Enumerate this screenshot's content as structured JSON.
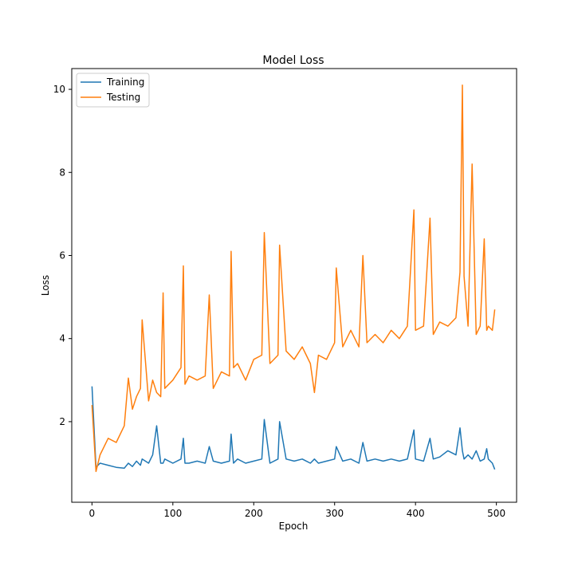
{
  "chart_data": {
    "type": "line",
    "title": "Model Loss",
    "xlabel": "Epoch",
    "ylabel": "Loss",
    "xlim": [
      -25,
      525
    ],
    "ylim": [
      0.06,
      10.5
    ],
    "xticks": [
      0,
      100,
      200,
      300,
      400,
      500
    ],
    "yticks": [
      2,
      4,
      6,
      8,
      10
    ],
    "grid": false,
    "legend_placement": "upper-left",
    "colors": {
      "training": "#1f77b4",
      "testing": "#ff7f0e"
    },
    "keypoint_x": [
      0,
      5,
      10,
      20,
      30,
      40,
      45,
      50,
      55,
      60,
      62,
      70,
      75,
      80,
      85,
      88,
      90,
      100,
      110,
      113,
      115,
      120,
      130,
      140,
      145,
      150,
      160,
      170,
      172,
      175,
      180,
      190,
      200,
      210,
      213,
      220,
      230,
      232,
      240,
      250,
      260,
      270,
      275,
      280,
      290,
      300,
      302,
      310,
      320,
      330,
      335,
      340,
      350,
      360,
      370,
      380,
      390,
      398,
      400,
      410,
      418,
      422,
      430,
      440,
      450,
      455,
      458,
      460,
      465,
      470,
      475,
      480,
      485,
      488,
      490,
      495,
      498
    ],
    "series": [
      {
        "name": "Training",
        "values": [
          2.85,
          0.9,
          1.0,
          0.95,
          0.9,
          0.88,
          1.0,
          0.92,
          1.05,
          0.95,
          1.1,
          1.0,
          1.2,
          1.9,
          1.0,
          1.0,
          1.1,
          1.0,
          1.1,
          1.6,
          1.0,
          1.0,
          1.05,
          1.0,
          1.4,
          1.05,
          1.0,
          1.05,
          1.7,
          1.0,
          1.1,
          1.0,
          1.05,
          1.1,
          2.05,
          1.0,
          1.1,
          2.0,
          1.1,
          1.05,
          1.1,
          1.0,
          1.1,
          1.0,
          1.05,
          1.1,
          1.4,
          1.05,
          1.1,
          1.0,
          1.5,
          1.05,
          1.1,
          1.05,
          1.1,
          1.05,
          1.1,
          1.8,
          1.1,
          1.05,
          1.6,
          1.1,
          1.15,
          1.3,
          1.2,
          1.85,
          1.3,
          1.1,
          1.2,
          1.1,
          1.3,
          1.05,
          1.1,
          1.35,
          1.1,
          1.0,
          0.85
        ]
      },
      {
        "name": "Testing",
        "values": [
          2.4,
          0.8,
          1.2,
          1.6,
          1.5,
          1.9,
          3.05,
          2.3,
          2.6,
          2.8,
          4.45,
          2.5,
          3.0,
          2.7,
          2.6,
          5.1,
          2.8,
          3.0,
          3.3,
          5.75,
          2.9,
          3.1,
          3.0,
          3.1,
          5.05,
          2.8,
          3.2,
          3.1,
          6.1,
          3.3,
          3.4,
          3.0,
          3.5,
          3.6,
          6.55,
          3.4,
          3.6,
          6.25,
          3.7,
          3.5,
          3.8,
          3.4,
          2.7,
          3.6,
          3.5,
          3.9,
          5.7,
          3.8,
          4.2,
          3.8,
          6.0,
          3.9,
          4.1,
          3.9,
          4.2,
          4.0,
          4.3,
          7.1,
          4.2,
          4.3,
          6.9,
          4.1,
          4.4,
          4.3,
          4.5,
          5.6,
          10.1,
          5.5,
          4.3,
          8.2,
          4.1,
          4.3,
          6.4,
          4.2,
          4.3,
          4.2,
          4.7
        ]
      }
    ]
  }
}
